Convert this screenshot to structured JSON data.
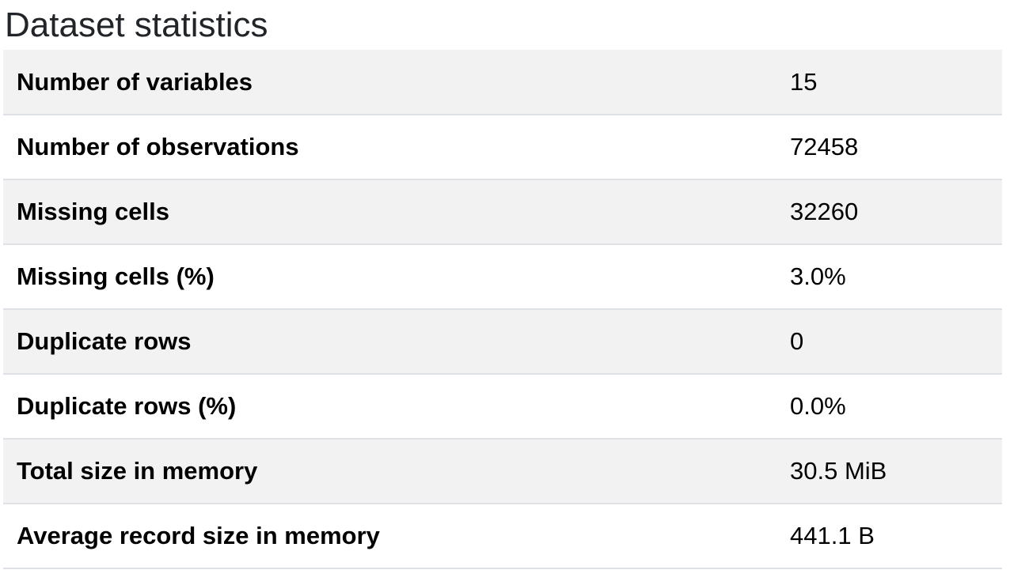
{
  "header": {
    "title": "Dataset statistics"
  },
  "stats": [
    {
      "label": "Number of variables",
      "value": "15"
    },
    {
      "label": "Number of observations",
      "value": "72458"
    },
    {
      "label": "Missing cells",
      "value": "32260"
    },
    {
      "label": "Missing cells (%)",
      "value": "3.0%"
    },
    {
      "label": "Duplicate rows",
      "value": "0"
    },
    {
      "label": "Duplicate rows (%)",
      "value": "0.0%"
    },
    {
      "label": "Total size in memory",
      "value": "30.5 MiB"
    },
    {
      "label": "Average record size in memory",
      "value": "441.1 B"
    }
  ],
  "colors": {
    "row_striped": "#f2f2f2",
    "row_plain": "#ffffff",
    "border": "#dee2e6",
    "text": "#000000"
  }
}
